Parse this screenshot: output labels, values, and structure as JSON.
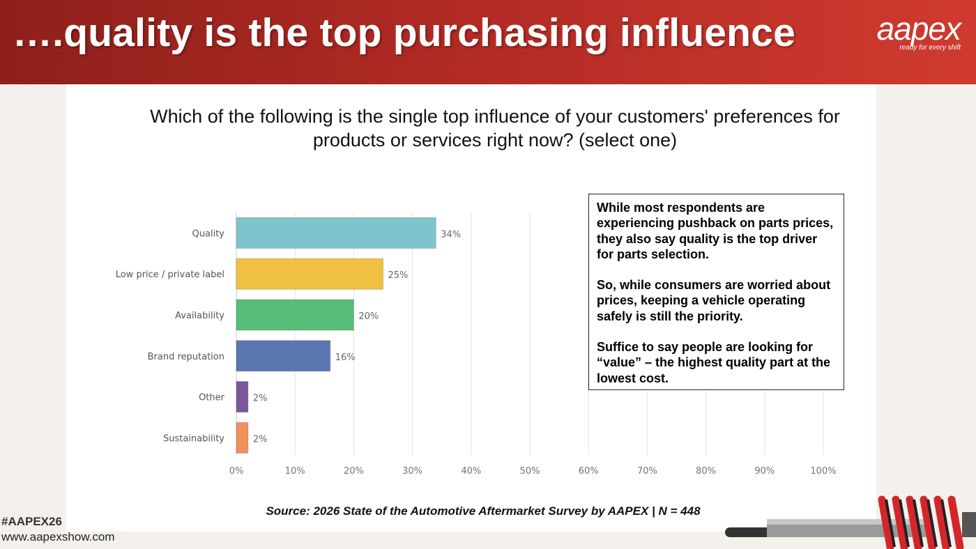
{
  "header": {
    "title": "….quality is the top purchasing influence",
    "logo_text": "aapex",
    "logo_tagline": "ready for every shift"
  },
  "question": {
    "line1": "Which of the following is the single top influence of your customers' preferences for",
    "line2": "products or services right now? (select one)"
  },
  "callout": {
    "p1": "While most respondents are experiencing pushback on parts prices, they also say quality is the top driver for parts selection.",
    "p2": "So, while consumers are worried about prices, keeping a vehicle operating safely is still the priority.",
    "p3": "Suffice to say people are looking for “value” – the highest quality part at the lowest cost."
  },
  "source": "Source: 2026 State of the Automotive Aftermarket Survey by AAPEX  | N = 448",
  "footer": {
    "hashtag": "#AAPEX26",
    "website": "www.aapexshow.com"
  },
  "colors": {
    "header_left": "#8f1f1b",
    "header_right": "#cf3a2f"
  },
  "chart_data": {
    "type": "bar",
    "orientation": "horizontal",
    "categories": [
      "Quality",
      "Low price / private label",
      "Availability",
      "Brand reputation",
      "Other",
      "Sustainability"
    ],
    "values": [
      34,
      25,
      20,
      16,
      2,
      2
    ],
    "data_labels": [
      "34%",
      "25%",
      "20%",
      "16%",
      "2%",
      "2%"
    ],
    "colors": [
      "#7fc4cc",
      "#f0c040",
      "#56bd78",
      "#5b76b0",
      "#785896",
      "#f0905a"
    ],
    "xlim": [
      0,
      100
    ],
    "xticks": [
      "0%",
      "10%",
      "20%",
      "30%",
      "40%",
      "50%",
      "60%",
      "70%",
      "80%",
      "90%",
      "100%"
    ],
    "grid": true
  }
}
